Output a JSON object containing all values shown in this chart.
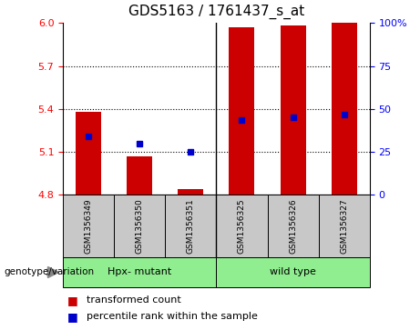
{
  "title": "GDS5163 / 1761437_s_at",
  "samples": [
    "GSM1356349",
    "GSM1356350",
    "GSM1356351",
    "GSM1356325",
    "GSM1356326",
    "GSM1356327"
  ],
  "groups": [
    {
      "label": "Hpx- mutant",
      "indices": [
        0,
        1,
        2
      ],
      "color": "#90EE90"
    },
    {
      "label": "wild type",
      "indices": [
        3,
        4,
        5
      ],
      "color": "#90EE90"
    }
  ],
  "bar_values": [
    5.38,
    5.07,
    4.84,
    5.97,
    5.985,
    6.0
  ],
  "blue_marker_values": [
    5.21,
    5.16,
    5.1,
    5.32,
    5.34,
    5.36
  ],
  "baseline": 4.8,
  "ylim": [
    4.8,
    6.0
  ],
  "yticks_left": [
    4.8,
    5.1,
    5.4,
    5.7,
    6.0
  ],
  "yticks_right": [
    0,
    25,
    50,
    75,
    100
  ],
  "bar_color": "#CC0000",
  "marker_color": "#0000CC",
  "sample_row_color": "#C8C8C8",
  "group_row_color": "#90EE90",
  "genotype_label": "genotype/variation",
  "legend_bar_label": "transformed count",
  "legend_marker_label": "percentile rank within the sample",
  "title_fontsize": 11,
  "tick_fontsize": 8,
  "sample_fontsize": 6.5,
  "group_fontsize": 8,
  "legend_fontsize": 8
}
